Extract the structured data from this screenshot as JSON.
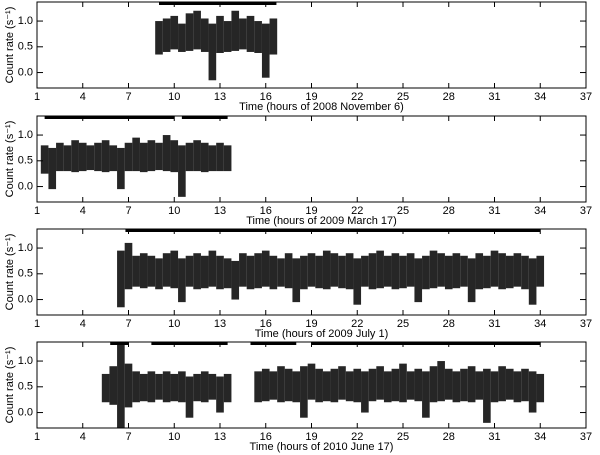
{
  "chart_data": [
    {
      "type": "range",
      "xlabel": "Time (hours of 2008 November 6)",
      "ylabel": "Count rate (s⁻¹)",
      "xlim": [
        1,
        37
      ],
      "ylim": [
        -0.3,
        1.37
      ],
      "xticks": [
        1,
        4,
        7,
        10,
        13,
        16,
        19,
        22,
        25,
        28,
        31,
        34,
        37
      ],
      "yticks": [
        {
          "value": 0,
          "label": "0.0"
        },
        0.5,
        {
          "value": 1,
          "label": "1.0"
        }
      ],
      "color": "#000000",
      "segments": [
        [
          9,
          16.7
        ]
      ],
      "x": [
        9,
        9.5,
        10,
        10.5,
        11,
        11.5,
        12,
        12.5,
        13,
        13.5,
        14,
        14.5,
        15,
        15.5,
        16,
        16.5
      ],
      "low": [
        0.35,
        0.4,
        0.45,
        0.4,
        0.42,
        0.45,
        0.4,
        -0.15,
        0.38,
        0.4,
        0.42,
        0.45,
        0.4,
        0.38,
        -0.1,
        0.35
      ],
      "high": [
        1.0,
        1.05,
        1.1,
        0.95,
        1.15,
        1.2,
        1.05,
        0.95,
        1.1,
        1.0,
        1.2,
        1.05,
        1.1,
        1.0,
        0.95,
        1.05
      ]
    },
    {
      "type": "range",
      "xlabel": "Time (hours of 2009 March 17)",
      "ylabel": "Count rate (s⁻¹)",
      "xlim": [
        1,
        37
      ],
      "ylim": [
        -0.3,
        1.37
      ],
      "xticks": [
        1,
        4,
        7,
        10,
        13,
        16,
        19,
        22,
        25,
        28,
        31,
        34,
        37
      ],
      "yticks": [
        {
          "value": 0,
          "label": "0.0"
        },
        0.5,
        {
          "value": 1,
          "label": "1.0"
        }
      ],
      "color": "#000000",
      "segments": [
        [
          1.5,
          10
        ],
        [
          10.5,
          13.5
        ]
      ],
      "x": [
        1.5,
        2,
        2.5,
        3,
        3.5,
        4,
        4.5,
        5,
        5.5,
        6,
        6.5,
        7,
        7.5,
        8,
        8.5,
        9,
        9.5,
        10,
        10.5,
        11,
        11.5,
        12,
        12.5,
        13,
        13.5
      ],
      "low": [
        0.25,
        -0.05,
        0.3,
        0.3,
        0.28,
        0.3,
        0.32,
        0.3,
        0.28,
        0.3,
        -0.05,
        0.3,
        0.3,
        0.28,
        0.3,
        0.32,
        0.3,
        0.28,
        -0.2,
        0.3,
        0.3,
        0.28,
        0.3,
        0.3,
        0.3
      ],
      "high": [
        0.8,
        0.75,
        0.85,
        0.8,
        0.9,
        0.85,
        0.8,
        0.85,
        0.9,
        0.8,
        0.75,
        0.85,
        0.95,
        0.85,
        0.9,
        0.85,
        1.0,
        0.9,
        0.8,
        0.85,
        0.9,
        0.85,
        0.8,
        0.85,
        0.8
      ]
    },
    {
      "type": "range",
      "xlabel": "Time (hours of 2009 July 1)",
      "ylabel": "Count rate (s⁻¹)",
      "xlim": [
        1,
        37
      ],
      "ylim": [
        -0.3,
        1.37
      ],
      "xticks": [
        1,
        4,
        7,
        10,
        13,
        16,
        19,
        22,
        25,
        28,
        31,
        34,
        37
      ],
      "yticks": [
        {
          "value": 0,
          "label": "0.0"
        },
        0.5,
        {
          "value": 1,
          "label": "1.0"
        }
      ],
      "color": "#000000",
      "segments": [
        [
          6.8,
          34
        ]
      ],
      "x": [
        6.5,
        7,
        7.5,
        8,
        8.5,
        9,
        9.5,
        10,
        10.5,
        11,
        11.5,
        12,
        12.5,
        13,
        13.5,
        14,
        14.5,
        15,
        15.5,
        16,
        16.5,
        17,
        17.5,
        18,
        18.5,
        19,
        19.5,
        20,
        20.5,
        21,
        21.5,
        22,
        22.5,
        23,
        23.5,
        24,
        24.5,
        25,
        25.5,
        26,
        26.5,
        27,
        27.5,
        28,
        28.5,
        29,
        29.5,
        30,
        30.5,
        31,
        31.5,
        32,
        32.5,
        33,
        33.5,
        34
      ],
      "low": [
        -0.15,
        0.2,
        0.25,
        0.22,
        0.25,
        0.2,
        0.25,
        0.22,
        -0.05,
        0.25,
        0.2,
        0.22,
        0.25,
        0.2,
        0.22,
        0.0,
        0.25,
        0.2,
        0.22,
        0.25,
        0.2,
        0.25,
        0.22,
        -0.05,
        0.2,
        0.25,
        0.22,
        0.2,
        0.25,
        0.22,
        0.2,
        -0.1,
        0.25,
        0.2,
        0.22,
        0.25,
        0.2,
        0.22,
        0.25,
        -0.05,
        0.2,
        0.22,
        0.25,
        0.2,
        0.22,
        0.25,
        -0.05,
        0.2,
        0.22,
        0.25,
        0.2,
        0.22,
        0.25,
        0.2,
        -0.1,
        0.25
      ],
      "high": [
        0.95,
        1.1,
        0.85,
        0.9,
        0.85,
        0.8,
        0.9,
        0.95,
        0.8,
        0.85,
        0.9,
        0.85,
        0.95,
        0.85,
        0.8,
        0.75,
        0.9,
        0.85,
        0.9,
        0.95,
        0.85,
        0.8,
        0.9,
        0.8,
        0.85,
        0.9,
        0.85,
        0.95,
        0.9,
        0.85,
        0.9,
        0.8,
        0.85,
        0.9,
        0.95,
        0.85,
        0.9,
        0.85,
        0.9,
        0.8,
        0.85,
        0.95,
        0.9,
        0.85,
        0.9,
        0.85,
        0.8,
        0.9,
        0.85,
        0.95,
        0.9,
        0.85,
        0.9,
        0.85,
        0.8,
        0.85
      ]
    },
    {
      "type": "range",
      "xlabel": "Time (hours of 2010 June 17)",
      "ylabel": "Count rate (s⁻¹)",
      "xlim": [
        1,
        37
      ],
      "ylim": [
        -0.3,
        1.37
      ],
      "xticks": [
        1,
        4,
        7,
        10,
        13,
        16,
        19,
        22,
        25,
        28,
        31,
        34,
        37
      ],
      "yticks": [
        {
          "value": 0,
          "label": "0.0"
        },
        0.5,
        {
          "value": 1,
          "label": "1.0"
        }
      ],
      "color": "#000000",
      "segments": [
        [
          5.8,
          7
        ],
        [
          8.5,
          13.5
        ],
        [
          15,
          18
        ],
        [
          19,
          34
        ]
      ],
      "x": [
        5.5,
        6,
        6.5,
        7,
        7.5,
        8,
        8.5,
        9,
        9.5,
        10,
        10.5,
        11,
        11.5,
        12,
        12.5,
        13,
        13.5,
        15.5,
        16,
        16.5,
        17,
        17.5,
        18,
        18.5,
        19,
        19.5,
        20,
        20.5,
        21,
        21.5,
        22,
        22.5,
        23,
        23.5,
        24,
        24.5,
        25,
        25.5,
        26,
        26.5,
        27,
        27.5,
        28,
        28.5,
        29,
        29.5,
        30,
        30.5,
        31,
        31.5,
        32,
        32.5,
        33,
        33.5,
        34
      ],
      "low": [
        0.2,
        0.15,
        -0.3,
        0.1,
        0.2,
        0.22,
        0.2,
        0.25,
        0.2,
        0.22,
        0.2,
        -0.1,
        0.22,
        0.2,
        0.25,
        0.0,
        0.2,
        0.2,
        0.22,
        0.25,
        0.2,
        0.22,
        0.2,
        -0.1,
        0.25,
        0.2,
        0.22,
        0.2,
        0.25,
        0.22,
        0.2,
        0.0,
        0.22,
        0.25,
        0.2,
        0.22,
        0.2,
        0.25,
        0.22,
        -0.1,
        0.2,
        0.22,
        0.25,
        0.2,
        0.22,
        0.2,
        0.25,
        -0.2,
        0.2,
        0.22,
        0.25,
        0.2,
        0.22,
        0.0,
        0.2
      ],
      "high": [
        0.75,
        0.9,
        1.35,
        0.95,
        0.8,
        0.75,
        0.8,
        0.75,
        0.8,
        0.75,
        0.8,
        0.7,
        0.75,
        0.8,
        0.75,
        0.7,
        0.75,
        0.8,
        0.85,
        0.8,
        0.9,
        0.85,
        0.8,
        0.9,
        0.95,
        0.85,
        0.8,
        0.85,
        0.9,
        0.8,
        0.85,
        0.8,
        0.85,
        0.9,
        0.8,
        0.85,
        0.95,
        0.8,
        0.85,
        0.8,
        0.9,
        1.0,
        0.85,
        0.8,
        0.85,
        0.9,
        0.8,
        0.85,
        0.8,
        0.9,
        0.85,
        0.8,
        0.85,
        0.8,
        0.75
      ]
    }
  ]
}
